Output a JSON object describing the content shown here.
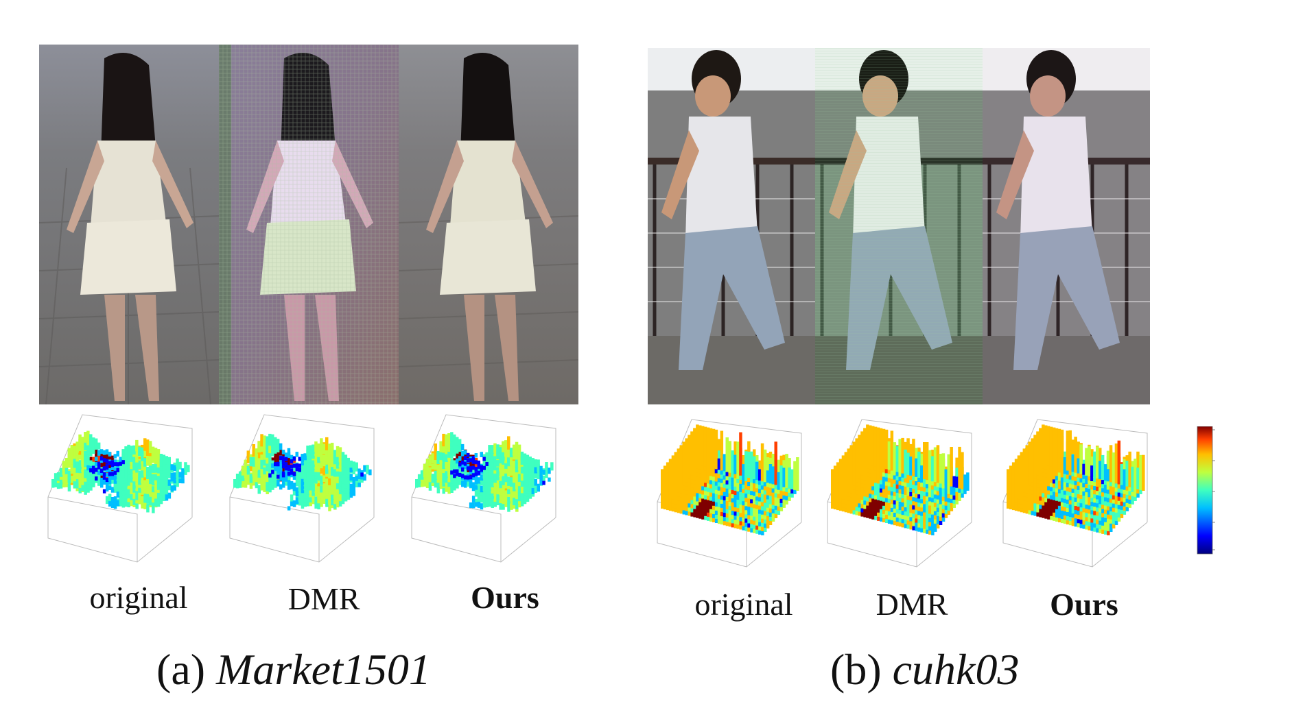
{
  "panels": [
    {
      "id": "a",
      "caption_prefix": "(a)",
      "dataset": "Market1501",
      "methods": [
        {
          "label": "original",
          "bold": false
        },
        {
          "label": "DMR",
          "bold": false
        },
        {
          "label": "Ours",
          "bold": true
        }
      ]
    },
    {
      "id": "b",
      "caption_prefix": "(b)",
      "dataset": "cuhk03",
      "methods": [
        {
          "label": "original",
          "bold": false
        },
        {
          "label": "DMR",
          "bold": false
        },
        {
          "label": "Ours",
          "bold": true
        }
      ]
    }
  ],
  "colors": {
    "colormap": [
      "#00007f",
      "#0000ff",
      "#00bfff",
      "#3fffbf",
      "#bfff3f",
      "#ffbf00",
      "#ff3f00",
      "#7f0000"
    ],
    "market_bg": "#7a7a7a",
    "cuhk_bg": "#8a8a8a"
  }
}
